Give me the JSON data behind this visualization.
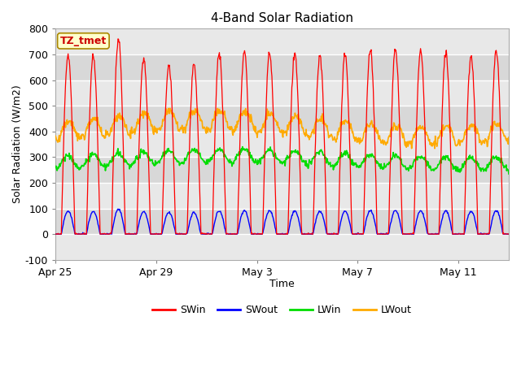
{
  "title": "4-Band Solar Radiation",
  "xlabel": "Time",
  "ylabel": "Solar Radiation (W/m2)",
  "ylim": [
    -100,
    800
  ],
  "yticks": [
    -100,
    0,
    100,
    200,
    300,
    400,
    500,
    600,
    700,
    800
  ],
  "xtick_labels": [
    "Apr 25",
    "Apr 29",
    "May 3",
    "May 7",
    "May 11"
  ],
  "xtick_positions": [
    0,
    4,
    8,
    12,
    16
  ],
  "colors": {
    "SWin": "#ff0000",
    "SWout": "#0000ff",
    "LWin": "#00dd00",
    "LWout": "#ffaa00"
  },
  "label_box": "TZ_tmet",
  "fig_bg_color": "#ffffff",
  "plot_bg_color": "#d8d8d8",
  "grid_color": "#ffffff",
  "n_days": 18,
  "legend": [
    "SWin",
    "SWout",
    "LWin",
    "LWout"
  ],
  "figsize": [
    6.4,
    4.8
  ],
  "dpi": 100
}
